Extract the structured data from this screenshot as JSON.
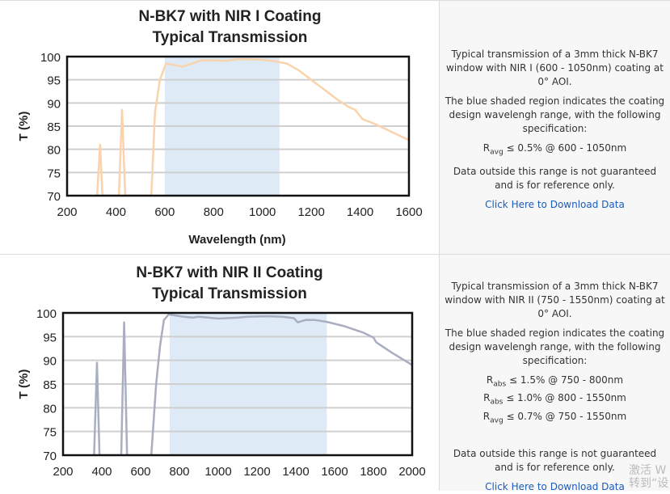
{
  "chart_data": [
    {
      "type": "line",
      "title": "N-BK7 with NIR I Coating",
      "subtitle": "Typical Transmission",
      "xlabel": "Wavelength (nm)",
      "ylabel": "T (%)",
      "xlim": [
        200,
        1600
      ],
      "ylim": [
        70,
        100
      ],
      "xticks": [
        200,
        400,
        600,
        800,
        1000,
        1200,
        1400,
        1600
      ],
      "yticks": [
        70,
        75,
        80,
        85,
        90,
        95,
        100
      ],
      "grid": true,
      "shaded_range": [
        600,
        1070
      ],
      "shade_color": "#deebf7",
      "line_color": "#f9d3ac",
      "x": [
        323,
        335,
        345,
        412,
        425,
        438,
        545,
        560,
        580,
        605,
        640,
        670,
        700,
        750,
        800,
        850,
        900,
        950,
        1000,
        1050,
        1100,
        1150,
        1200,
        1250,
        1300,
        1350,
        1380,
        1410,
        1450,
        1500,
        1550,
        1600
      ],
      "y": [
        70,
        81,
        70,
        70,
        88.5,
        70,
        70,
        88,
        95,
        98.5,
        98.2,
        97.8,
        98.3,
        99.2,
        99.2,
        99.1,
        99.4,
        99.4,
        99.3,
        99.0,
        98.5,
        97.0,
        95.0,
        93.0,
        91.0,
        89.2,
        88.5,
        86.5,
        85.7,
        84.5,
        83.2,
        82.0
      ]
    },
    {
      "type": "line",
      "title": "N-BK7 with NIR II Coating",
      "subtitle": "Typical Transmission",
      "xlabel": "",
      "ylabel": "T (%)",
      "xlim": [
        200,
        2000
      ],
      "ylim": [
        70,
        100
      ],
      "xticks": [
        200,
        400,
        600,
        800,
        1000,
        1200,
        1400,
        1600,
        1800,
        2000
      ],
      "yticks": [
        70,
        75,
        80,
        85,
        90,
        95,
        100
      ],
      "grid": true,
      "shaded_range": [
        750,
        1560
      ],
      "shade_color": "#deebf7",
      "line_color": "#a9aec0",
      "x": [
        360,
        375,
        388,
        500,
        515,
        530,
        655,
        680,
        700,
        720,
        745,
        770,
        820,
        870,
        900,
        1000,
        1100,
        1150,
        1250,
        1330,
        1390,
        1410,
        1425,
        1450,
        1500,
        1560,
        1650,
        1750,
        1800,
        1815,
        1900,
        2000
      ],
      "y": [
        70,
        89.5,
        70,
        70,
        98,
        70,
        70,
        85,
        93,
        98.5,
        99.7,
        99.5,
        99.2,
        99.0,
        99.2,
        98.8,
        99.0,
        99.2,
        99.3,
        99.2,
        98.9,
        98.0,
        98.2,
        98.5,
        98.5,
        98.1,
        97.2,
        95.8,
        94.8,
        93.8,
        91.5,
        89.0
      ]
    }
  ],
  "panels": [
    {
      "description": "Typical transmission of a 3mm thick N-BK7 window with NIR I (600 - 1050nm) coating at 0° AOI.",
      "shaded_note": "The blue shaded region indicates the coating design wavelengh range, with the following specification:",
      "specs": [
        {
          "symbol": "R",
          "sub": "avg",
          "text": " ≤ 0.5% @ 600 - 1050nm"
        }
      ],
      "disclaimer": "Data outside this range is not guaranteed and is for reference only.",
      "download_link": "Click Here to Download Data"
    },
    {
      "description": "Typical transmission of a 3mm thick N-BK7 window with NIR II (750 - 1550nm) coating at 0° AOI.",
      "shaded_note": "The blue shaded region indicates the coating design wavelengh range, with the following specification:",
      "specs": [
        {
          "symbol": "R",
          "sub": "abs",
          "text": " ≤ 1.5% @ 750 - 800nm"
        },
        {
          "symbol": "R",
          "sub": "abs",
          "text": " ≤ 1.0% @ 800 - 1550nm"
        },
        {
          "symbol": "R",
          "sub": "avg",
          "text": " ≤ 0.7% @ 750 - 1550nm"
        }
      ],
      "disclaimer": "Data outside this range is not guaranteed and is for reference only.",
      "download_link": "Click Here to Download Data"
    }
  ],
  "watermark": {
    "line1": "激活 W",
    "line2": "转到“设"
  }
}
